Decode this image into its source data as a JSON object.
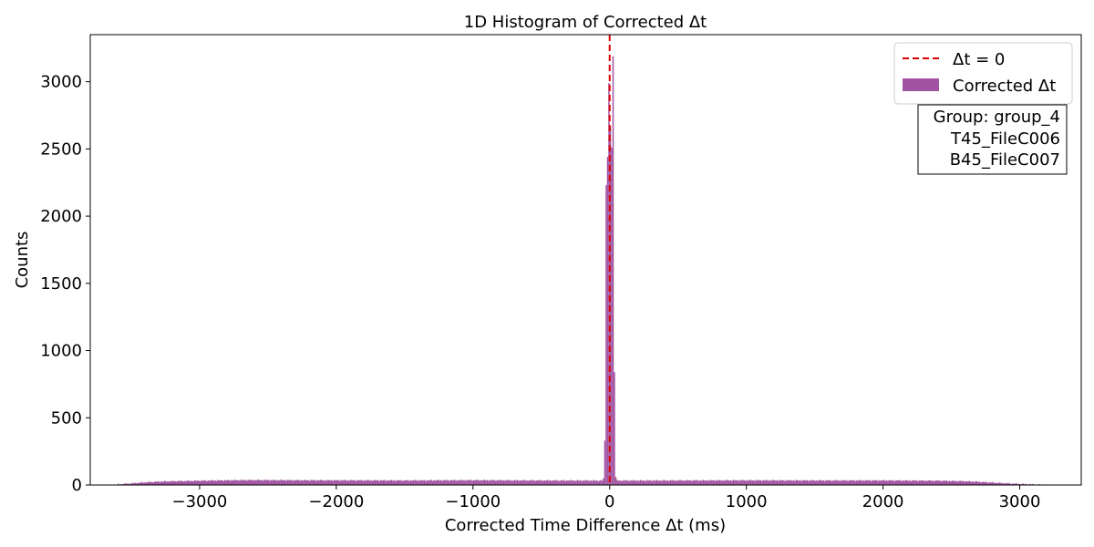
{
  "chart_data": {
    "type": "bar",
    "title": "1D Histogram of Corrected Δt",
    "xlabel": "Corrected Time Difference Δt (ms)",
    "ylabel": "Counts",
    "xlim": [
      -3800,
      3450
    ],
    "ylim": [
      0,
      3350
    ],
    "xticks": [
      -3000,
      -2000,
      -1000,
      0,
      1000,
      2000,
      3000
    ],
    "xtick_labels": [
      "−3000",
      "−2000",
      "−1000",
      "0",
      "1000",
      "2000",
      "3000"
    ],
    "yticks": [
      0,
      500,
      1000,
      1500,
      2000,
      2500,
      3000
    ],
    "ytick_labels": [
      "0",
      "500",
      "1000",
      "1500",
      "2000",
      "2500",
      "3000"
    ],
    "grid": false,
    "bin_width": 10,
    "series": [
      {
        "name": "Corrected Δt",
        "color": "#994499",
        "baseline": [
          {
            "x": -3600,
            "y": 5
          },
          {
            "x": -3500,
            "y": 12
          },
          {
            "x": -3400,
            "y": 20
          },
          {
            "x": -3300,
            "y": 25
          },
          {
            "x": -3200,
            "y": 28
          },
          {
            "x": -3000,
            "y": 32
          },
          {
            "x": -2800,
            "y": 35
          },
          {
            "x": -2600,
            "y": 37
          },
          {
            "x": -2400,
            "y": 36
          },
          {
            "x": -2000,
            "y": 35
          },
          {
            "x": -1500,
            "y": 34
          },
          {
            "x": -1000,
            "y": 36
          },
          {
            "x": -500,
            "y": 34
          },
          {
            "x": -60,
            "y": 33
          },
          {
            "x": 60,
            "y": 33
          },
          {
            "x": 500,
            "y": 34
          },
          {
            "x": 1000,
            "y": 35
          },
          {
            "x": 1500,
            "y": 34
          },
          {
            "x": 2000,
            "y": 34
          },
          {
            "x": 2400,
            "y": 32
          },
          {
            "x": 2600,
            "y": 28
          },
          {
            "x": 2700,
            "y": 24
          },
          {
            "x": 2800,
            "y": 18
          },
          {
            "x": 2900,
            "y": 13
          },
          {
            "x": 3000,
            "y": 8
          },
          {
            "x": 3100,
            "y": 4
          },
          {
            "x": 3150,
            "y": 1
          }
        ],
        "peak_bins": [
          {
            "x": -45,
            "y": 50
          },
          {
            "x": -35,
            "y": 330
          },
          {
            "x": -25,
            "y": 2230
          },
          {
            "x": -15,
            "y": 2440
          },
          {
            "x": -5,
            "y": 2990
          },
          {
            "x": 5,
            "y": 2670
          },
          {
            "x": 15,
            "y": 2510
          },
          {
            "x": 25,
            "y": 3190
          },
          {
            "x": 35,
            "y": 840
          },
          {
            "x": 45,
            "y": 60
          }
        ]
      }
    ],
    "reference_line": {
      "x": 0,
      "label": "Δt = 0",
      "color": "#dd0000",
      "style": "dashed"
    },
    "legend": {
      "position": "top-right",
      "entries": [
        "Δt = 0",
        "Corrected Δt"
      ]
    },
    "annotation": {
      "position": "top-right",
      "lines": [
        "Group: group_4",
        "T45_FileC006",
        "B45_FileC007"
      ]
    }
  }
}
